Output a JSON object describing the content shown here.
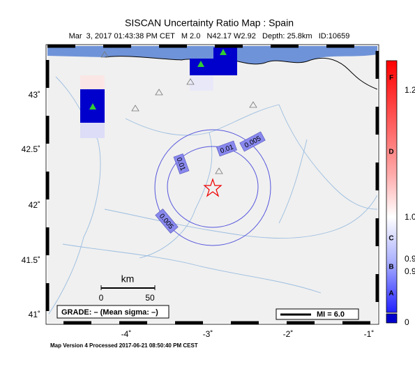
{
  "header": {
    "title": "SISCAN Uncertainty Ratio Map : Spain",
    "subtitle": "Mar  3, 2017 01:43:38 PM CET   M 2.0   N42.17 W2.92   Depth: 25.8km   ID:10659"
  },
  "lat_labels": [
    "43˚",
    "42.5˚",
    "42˚",
    "41.5˚",
    "41˚"
  ],
  "lon_labels": [
    "-4˚",
    "-3˚",
    "-2˚",
    "-1˚"
  ],
  "contour_labels": [
    "0.005",
    "0.01",
    "0.01",
    "0.005"
  ],
  "scale": {
    "unit": "km",
    "start": "0",
    "end": "50"
  },
  "grade": "GRADE: – (Mean sigma: –)",
  "magnitude_legend": "MI = 6.0",
  "colorbar": {
    "grades": [
      "F",
      "D",
      "C",
      "B",
      "A"
    ],
    "values": [
      "1.2",
      "1.0",
      "0.9",
      "0.9",
      "0"
    ]
  },
  "footer": "Map Version 4 Processed 2017-06-21 08:50:40 PM CEST"
}
